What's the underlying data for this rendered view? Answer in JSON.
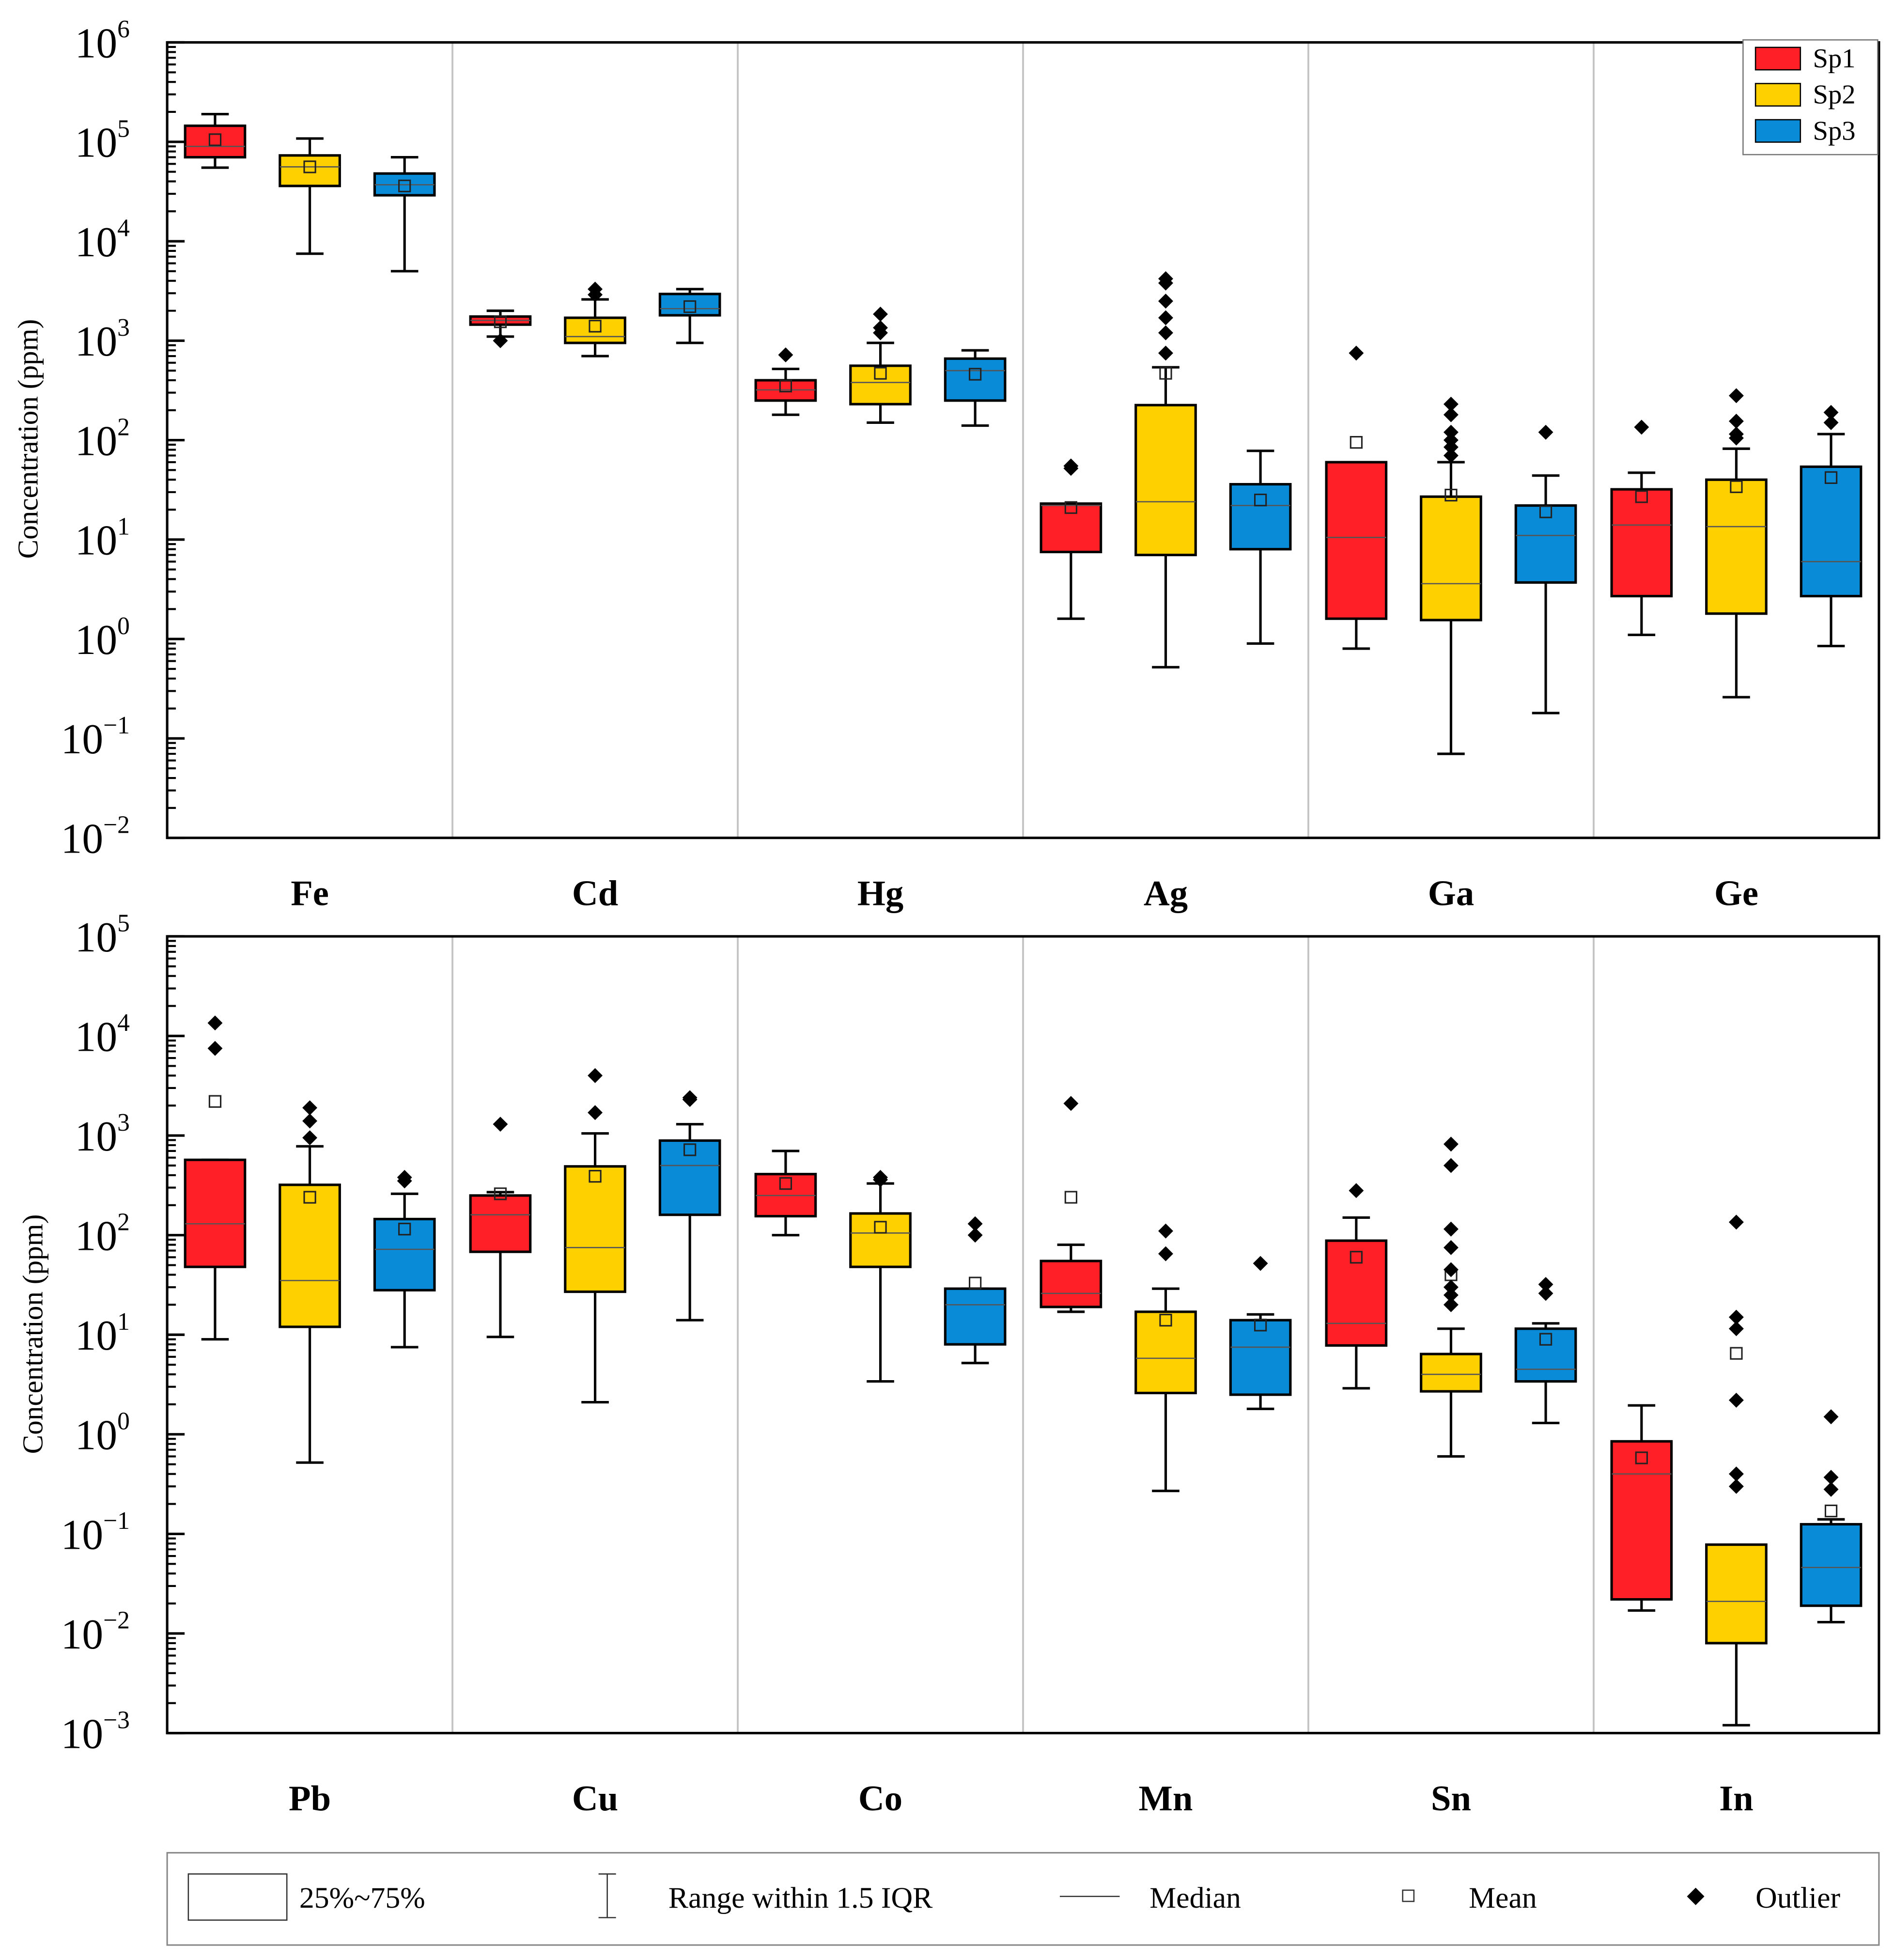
{
  "colors": {
    "Sp1": "#ff1f26",
    "Sp2": "#ffd000",
    "Sp3": "#0a8bd8"
  },
  "legend_series": [
    {
      "name": "Sp1",
      "color": "#ff1f26"
    },
    {
      "name": "Sp2",
      "color": "#ffd000"
    },
    {
      "name": "Sp3",
      "color": "#0a8bd8"
    }
  ],
  "key_legend": {
    "box": "25%~75%",
    "range": "Range within 1.5 IQR",
    "median": "Median",
    "mean": "Mean",
    "outlier": "Outlier"
  },
  "chart_data": [
    {
      "type": "box",
      "ylabel": "Concentration (ppm)",
      "yscale": "log",
      "ylim": [
        0.01,
        1000000
      ],
      "y_ticks": [
        {
          "base": "10",
          "exp": "6",
          "value": 1000000
        },
        {
          "base": "10",
          "exp": "5",
          "value": 100000
        },
        {
          "base": "10",
          "exp": "4",
          "value": 10000
        },
        {
          "base": "10",
          "exp": "3",
          "value": 1000
        },
        {
          "base": "10",
          "exp": "2",
          "value": 100
        },
        {
          "base": "10",
          "exp": "1",
          "value": 10
        },
        {
          "base": "10",
          "exp": "0",
          "value": 1
        },
        {
          "base": "10",
          "exp": "−1",
          "value": 0.1
        },
        {
          "base": "10",
          "exp": "−2",
          "value": 0.01
        }
      ],
      "legend": "top-right",
      "categories": [
        "Fe",
        "Cd",
        "Hg",
        "Ag",
        "Ga",
        "Ge"
      ],
      "groups": [
        {
          "element": "Fe",
          "boxes": [
            {
              "series": "Sp1",
              "wlo": 55000,
              "q1": 70000,
              "median": 90000,
              "q3": 145000,
              "whi": 190000,
              "mean": 105000,
              "outliers": []
            },
            {
              "series": "Sp2",
              "wlo": 7500,
              "q1": 36000,
              "median": 56000,
              "q3": 73000,
              "whi": 108000,
              "mean": 56000,
              "outliers": []
            },
            {
              "series": "Sp3",
              "wlo": 5000,
              "q1": 29000,
              "median": 37000,
              "q3": 48000,
              "whi": 70000,
              "mean": 36000,
              "outliers": []
            }
          ]
        },
        {
          "element": "Cd",
          "boxes": [
            {
              "series": "Sp1",
              "wlo": 1100,
              "q1": 1450,
              "median": 1600,
              "q3": 1750,
              "whi": 2000,
              "mean": 1550,
              "outliers": [
                1000
              ]
            },
            {
              "series": "Sp2",
              "wlo": 700,
              "q1": 950,
              "median": 1100,
              "q3": 1700,
              "whi": 2600,
              "mean": 1400,
              "outliers": [
                2900,
                3300
              ]
            },
            {
              "series": "Sp3",
              "wlo": 950,
              "q1": 1800,
              "median": 2100,
              "q3": 2950,
              "whi": 3300,
              "mean": 2200,
              "outliers": []
            }
          ]
        },
        {
          "element": "Hg",
          "boxes": [
            {
              "series": "Sp1",
              "wlo": 180,
              "q1": 250,
              "median": 320,
              "q3": 400,
              "whi": 520,
              "mean": 350,
              "outliers": [
                720
              ]
            },
            {
              "series": "Sp2",
              "wlo": 150,
              "q1": 230,
              "median": 380,
              "q3": 560,
              "whi": 950,
              "mean": 470,
              "outliers": [
                1200,
                1350,
                1850
              ]
            },
            {
              "series": "Sp3",
              "wlo": 140,
              "q1": 250,
              "median": 500,
              "q3": 660,
              "whi": 800,
              "mean": 460,
              "outliers": []
            }
          ]
        },
        {
          "element": "Ag",
          "boxes": [
            {
              "series": "Sp1",
              "wlo": 1.6,
              "q1": 7.5,
              "median": 22,
              "q3": 23,
              "whi": 23,
              "mean": 21,
              "outliers": [
                52,
                55
              ]
            },
            {
              "series": "Sp2",
              "wlo": 0.52,
              "q1": 7,
              "median": 24,
              "q3": 225,
              "whi": 540,
              "mean": 470,
              "outliers": [
                750,
                1200,
                1700,
                2500,
                3800,
                4200
              ]
            },
            {
              "series": "Sp3",
              "wlo": 0.9,
              "q1": 8,
              "median": 22,
              "q3": 36,
              "whi": 78,
              "mean": 25,
              "outliers": []
            }
          ]
        },
        {
          "element": "Ga",
          "boxes": [
            {
              "series": "Sp1",
              "wlo": 0.8,
              "q1": 1.6,
              "median": 10.5,
              "q3": 60,
              "whi": 60,
              "mean": 95,
              "outliers": [
                750
              ]
            },
            {
              "series": "Sp2",
              "wlo": 0.07,
              "q1": 1.55,
              "median": 3.6,
              "q3": 27,
              "whi": 60,
              "mean": 28,
              "outliers": [
                70,
                85,
                100,
                120,
                180,
                230
              ]
            },
            {
              "series": "Sp3",
              "wlo": 0.18,
              "q1": 3.7,
              "median": 11,
              "q3": 22,
              "whi": 44,
              "mean": 19,
              "outliers": [
                120
              ]
            }
          ]
        },
        {
          "element": "Ge",
          "boxes": [
            {
              "series": "Sp1",
              "wlo": 1.1,
              "q1": 2.7,
              "median": 14,
              "q3": 32,
              "whi": 47,
              "mean": 27,
              "outliers": [
                135
              ]
            },
            {
              "series": "Sp2",
              "wlo": 0.26,
              "q1": 1.8,
              "median": 13.5,
              "q3": 40,
              "whi": 82,
              "mean": 34,
              "outliers": [
                105,
                115,
                155,
                280
              ]
            },
            {
              "series": "Sp3",
              "wlo": 0.85,
              "q1": 2.7,
              "median": 6,
              "q3": 54,
              "whi": 115,
              "mean": 42,
              "outliers": [
                150,
                190
              ]
            }
          ]
        }
      ]
    },
    {
      "type": "box",
      "ylabel": "Concentration (ppm)",
      "yscale": "log",
      "ylim": [
        0.001,
        100000
      ],
      "y_ticks": [
        {
          "base": "10",
          "exp": "5",
          "value": 100000
        },
        {
          "base": "10",
          "exp": "4",
          "value": 10000
        },
        {
          "base": "10",
          "exp": "3",
          "value": 1000
        },
        {
          "base": "10",
          "exp": "2",
          "value": 100
        },
        {
          "base": "10",
          "exp": "1",
          "value": 10
        },
        {
          "base": "10",
          "exp": "0",
          "value": 1
        },
        {
          "base": "10",
          "exp": "−1",
          "value": 0.1
        },
        {
          "base": "10",
          "exp": "−2",
          "value": 0.01
        },
        {
          "base": "10",
          "exp": "−3",
          "value": 0.001
        }
      ],
      "categories": [
        "Pb",
        "Cu",
        "Co",
        "Mn",
        "Sn",
        "In"
      ],
      "groups": [
        {
          "element": "Pb",
          "boxes": [
            {
              "series": "Sp1",
              "wlo": 9,
              "q1": 48,
              "median": 130,
              "q3": 570,
              "whi": 570,
              "mean": 2200,
              "outliers": [
                7500,
                13500
              ]
            },
            {
              "series": "Sp2",
              "wlo": 0.52,
              "q1": 12,
              "median": 35,
              "q3": 320,
              "whi": 780,
              "mean": 240,
              "outliers": [
                950,
                1400,
                1900
              ]
            },
            {
              "series": "Sp3",
              "wlo": 7.5,
              "q1": 28,
              "median": 72,
              "q3": 145,
              "whi": 260,
              "mean": 115,
              "outliers": [
                350,
                380
              ]
            }
          ]
        },
        {
          "element": "Cu",
          "boxes": [
            {
              "series": "Sp1",
              "wlo": 9.5,
              "q1": 68,
              "median": 160,
              "q3": 250,
              "whi": 270,
              "mean": 260,
              "outliers": [
                1300
              ]
            },
            {
              "series": "Sp2",
              "wlo": 2.1,
              "q1": 27,
              "median": 75,
              "q3": 490,
              "whi": 1050,
              "mean": 390,
              "outliers": [
                1700,
                4000
              ]
            },
            {
              "series": "Sp3",
              "wlo": 14,
              "q1": 160,
              "median": 500,
              "q3": 890,
              "whi": 1300,
              "mean": 720,
              "outliers": [
                2300,
                2400
              ]
            }
          ]
        },
        {
          "element": "Co",
          "boxes": [
            {
              "series": "Sp1",
              "wlo": 100,
              "q1": 155,
              "median": 250,
              "q3": 410,
              "whi": 700,
              "mean": 330,
              "outliers": []
            },
            {
              "series": "Sp2",
              "wlo": 3.4,
              "q1": 48,
              "median": 105,
              "q3": 165,
              "whi": 330,
              "mean": 120,
              "outliers": [
                360,
                380
              ]
            },
            {
              "series": "Sp3",
              "wlo": 5.2,
              "q1": 8,
              "median": 20,
              "q3": 29,
              "whi": 29,
              "mean": 33,
              "outliers": [
                100,
                130
              ]
            }
          ]
        },
        {
          "element": "Mn",
          "boxes": [
            {
              "series": "Sp1",
              "wlo": 17,
              "q1": 19,
              "median": 26,
              "q3": 55,
              "whi": 80,
              "mean": 240,
              "outliers": [
                2100
              ]
            },
            {
              "series": "Sp2",
              "wlo": 0.27,
              "q1": 2.6,
              "median": 5.8,
              "q3": 17,
              "whi": 29,
              "mean": 14,
              "outliers": [
                65,
                110
              ]
            },
            {
              "series": "Sp3",
              "wlo": 1.8,
              "q1": 2.5,
              "median": 7.5,
              "q3": 14,
              "whi": 16,
              "mean": 12.5,
              "outliers": [
                52
              ]
            }
          ]
        },
        {
          "element": "Sn",
          "boxes": [
            {
              "series": "Sp1",
              "wlo": 2.9,
              "q1": 7.8,
              "median": 13,
              "q3": 88,
              "whi": 150,
              "mean": 60,
              "outliers": [
                280
              ]
            },
            {
              "series": "Sp2",
              "wlo": 0.6,
              "q1": 2.7,
              "median": 4,
              "q3": 6.4,
              "whi": 11.5,
              "mean": 40,
              "outliers": [
                20,
                25,
                30,
                45,
                75,
                115,
                500,
                820
              ]
            },
            {
              "series": "Sp3",
              "wlo": 1.3,
              "q1": 3.4,
              "median": 4.5,
              "q3": 11.5,
              "whi": 13,
              "mean": 9,
              "outliers": [
                26,
                32
              ]
            }
          ]
        },
        {
          "element": "In",
          "boxes": [
            {
              "series": "Sp1",
              "wlo": 0.017,
              "q1": 0.022,
              "median": 0.4,
              "q3": 0.85,
              "whi": 1.95,
              "mean": 0.58,
              "outliers": []
            },
            {
              "series": "Sp2",
              "wlo": 0.0012,
              "q1": 0.008,
              "median": 0.021,
              "q3": 0.078,
              "whi": 0.078,
              "mean": 6.5,
              "outliers": [
                0.3,
                0.4,
                2.2,
                11.5,
                15,
                135
              ]
            },
            {
              "series": "Sp3",
              "wlo": 0.013,
              "q1": 0.019,
              "median": 0.046,
              "q3": 0.125,
              "whi": 0.14,
              "mean": 0.17,
              "outliers": [
                0.28,
                0.37,
                1.5
              ]
            }
          ]
        }
      ]
    }
  ]
}
